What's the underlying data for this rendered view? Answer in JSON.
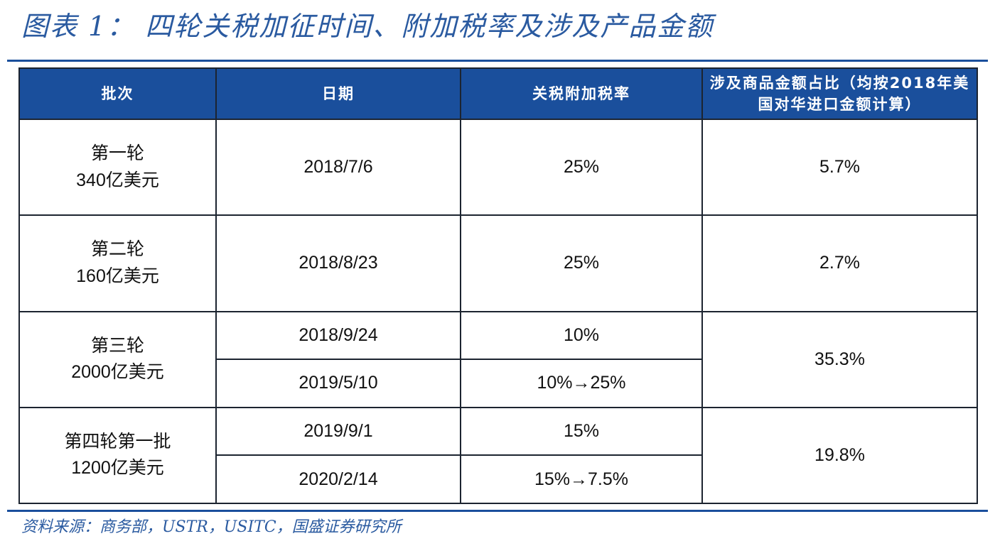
{
  "title": "图表 1： 四轮关税加征时间、附加税率及涉及产品金额",
  "table": {
    "headers": {
      "batch": "批次",
      "date": "日期",
      "rate": "关税附加税率",
      "share": "涉及商品金额占比（均按2018年美国对华进口金额计算）"
    },
    "rows": [
      {
        "batch_line1": "第一轮",
        "batch_line2": "340亿美元",
        "entries": [
          {
            "date": "2018/7/6",
            "rate": "25%"
          }
        ],
        "share": "5.7%"
      },
      {
        "batch_line1": "第二轮",
        "batch_line2": "160亿美元",
        "entries": [
          {
            "date": "2018/8/23",
            "rate": "25%"
          }
        ],
        "share": "2.7%"
      },
      {
        "batch_line1": "第三轮",
        "batch_line2": "2000亿美元",
        "entries": [
          {
            "date": "2018/9/24",
            "rate": "10%"
          },
          {
            "date": "2019/5/10",
            "rate": "10%→25%"
          }
        ],
        "share": "35.3%"
      },
      {
        "batch_line1": "第四轮第一批",
        "batch_line2": "1200亿美元",
        "entries": [
          {
            "date": "2019/9/1",
            "rate": "15%"
          },
          {
            "date": "2020/2/14",
            "rate": "15%→7.5%"
          }
        ],
        "share": "19.8%"
      }
    ]
  },
  "source": "资料来源：商务部，USTR，USITC，国盛证券研究所"
}
